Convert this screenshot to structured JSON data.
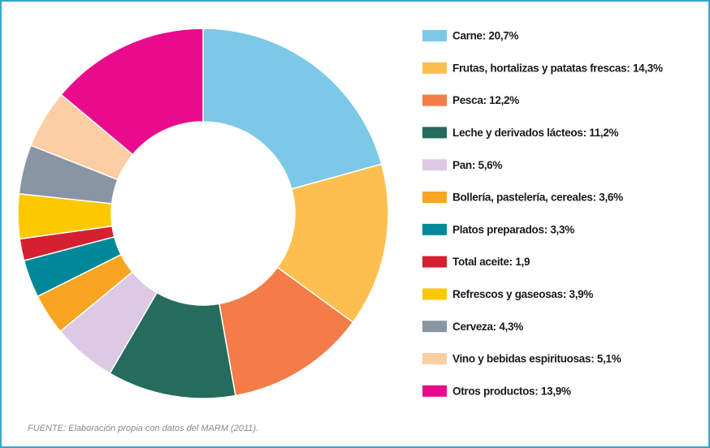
{
  "chart_data": {
    "type": "donut",
    "categories": [
      "Carne: 20,7%",
      "Frutas, hortalizas y patatas frescas: 14,3%",
      "Pesca: 12,2%",
      "Leche y derivados lácteos: 11,2%",
      "Pan: 5,6%",
      "Bollería, pastelería, cereales: 3,6%",
      "Platos preparados: 3,3%",
      "Total aceite: 1,9",
      "Refrescos y gaseosas: 3,9%",
      "Cerveza: 4,3%",
      "Vino y bebidas espirituosas: 5,1%",
      "Otros productos: 13,9%"
    ],
    "values": [
      20.7,
      14.3,
      12.2,
      11.2,
      5.6,
      3.6,
      3.3,
      1.9,
      3.9,
      4.3,
      5.1,
      13.9
    ],
    "colors": [
      "#7dc8e6",
      "#fdc050",
      "#f47c48",
      "#256b5e",
      "#ddc9e4",
      "#f7a522",
      "#008898",
      "#d5202f",
      "#fcc800",
      "#8a95a3",
      "#fdcda4",
      "#ea0b8c"
    ],
    "source": "FUENTE: Elaboración propia con datos del MARM (2011)."
  }
}
